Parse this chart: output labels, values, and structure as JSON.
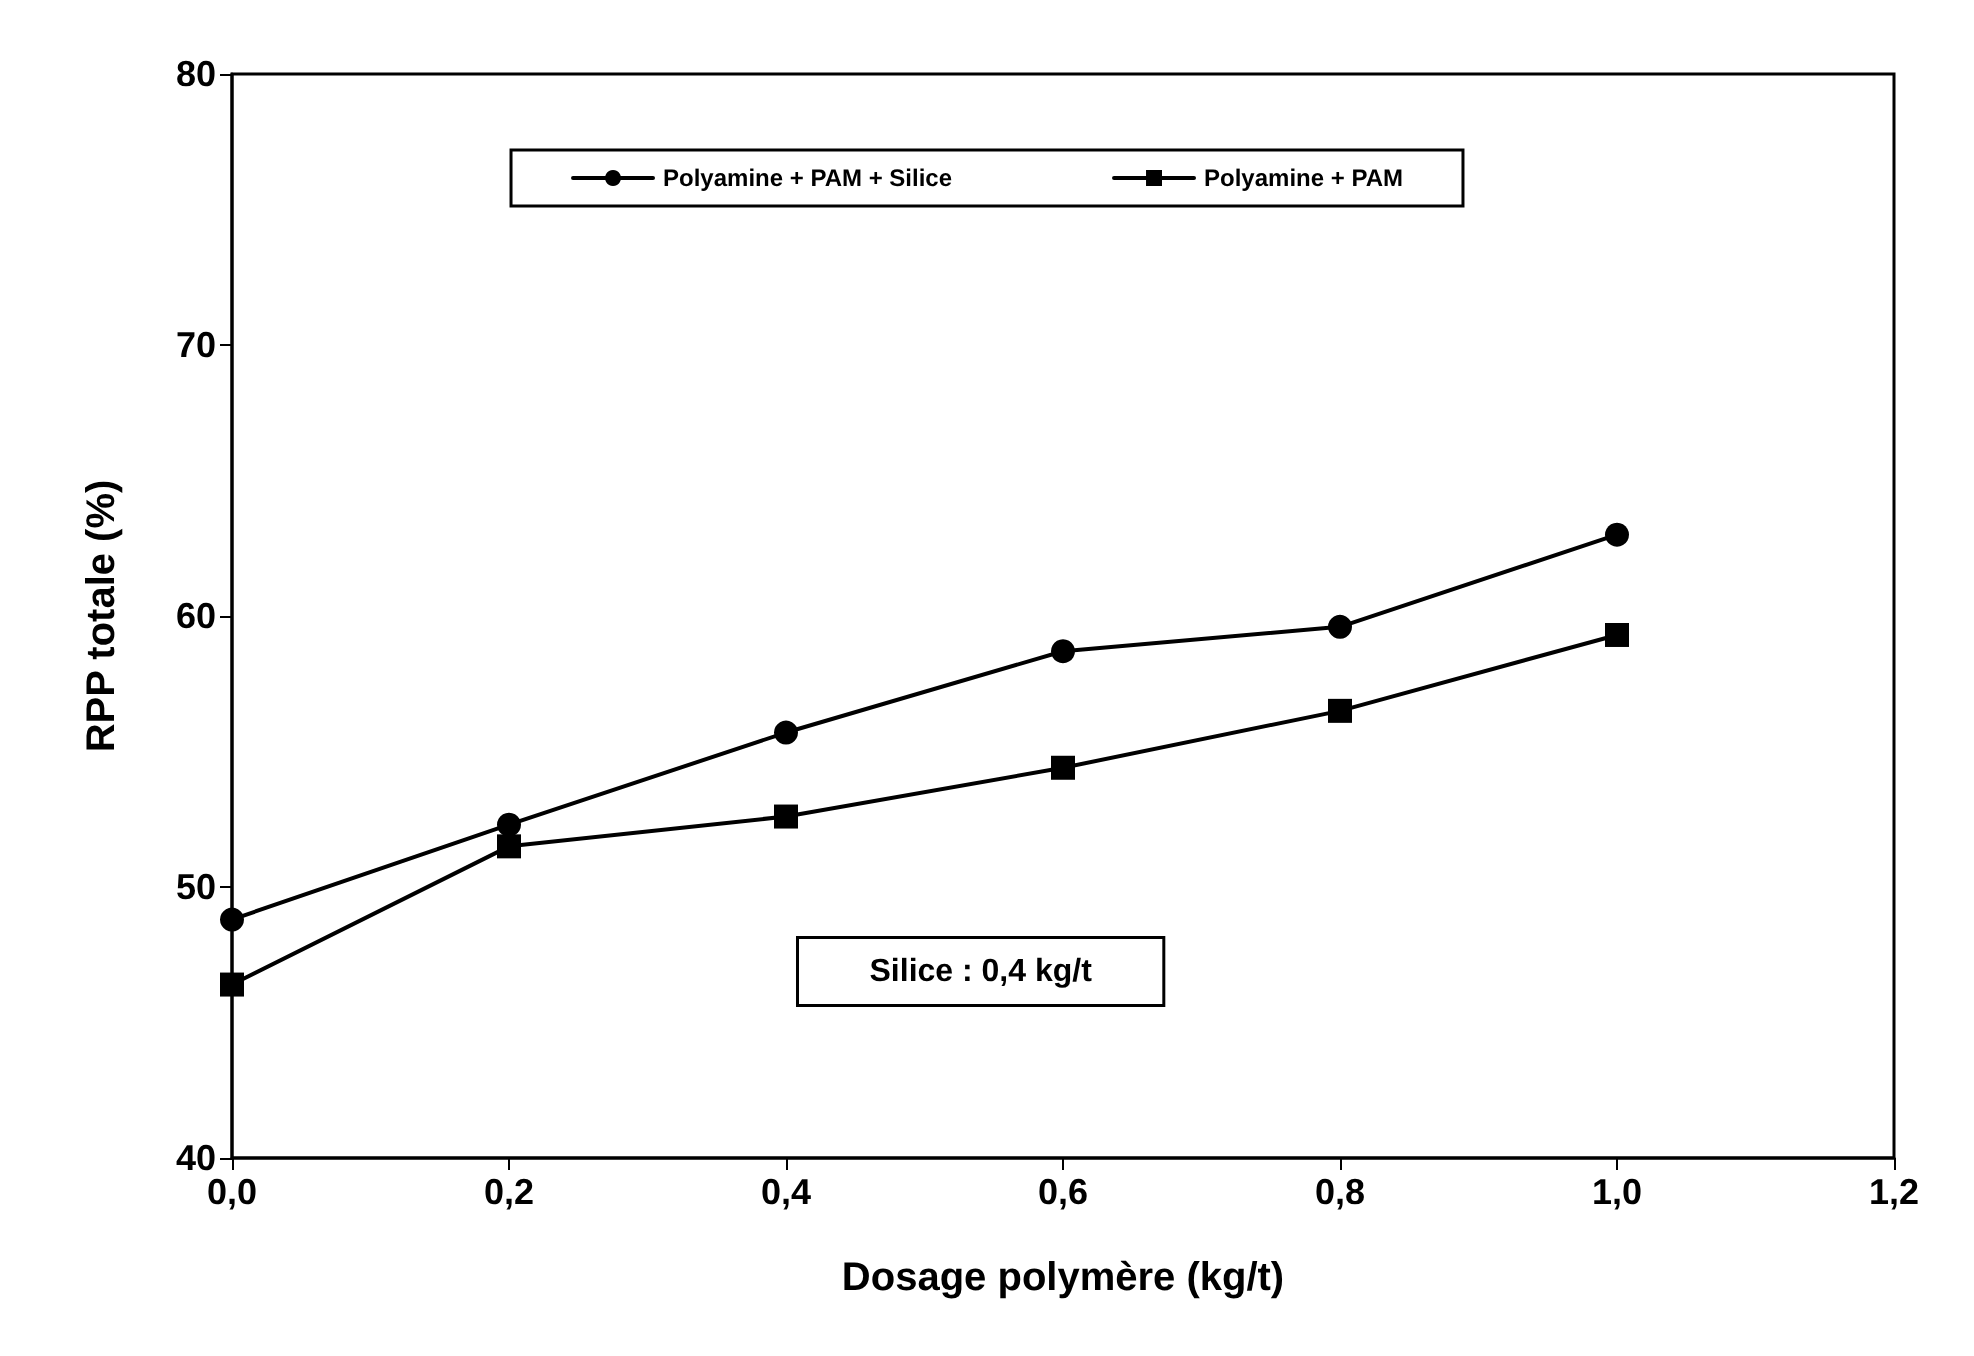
{
  "chart_data": {
    "type": "line",
    "xlabel": "Dosage polymère (kg/t)",
    "ylabel": "RPP totale (%)",
    "x": [
      0,
      0.2,
      0.4,
      0.6,
      0.8,
      1.0
    ],
    "series": [
      {
        "name": "Polyamine + PAM + Silice",
        "color": "#000000",
        "marker": "circle",
        "values": [
          48.8,
          52.3,
          55.7,
          58.7,
          59.6,
          63.0
        ]
      },
      {
        "name": "Polyamine + PAM",
        "color": "#000000",
        "marker": "square",
        "values": [
          46.4,
          51.5,
          52.6,
          54.4,
          56.5,
          59.3
        ]
      }
    ],
    "xlim": [
      0,
      1.2
    ],
    "xticks": [
      {
        "value": 0,
        "label": "0,0"
      },
      {
        "value": 0.2,
        "label": "0,2"
      },
      {
        "value": 0.4,
        "label": "0,4"
      },
      {
        "value": 0.6,
        "label": "0,6"
      },
      {
        "value": 0.8,
        "label": "0,8"
      },
      {
        "value": 1.0,
        "label": "1,0"
      },
      {
        "value": 1.2,
        "label": "1,2"
      }
    ],
    "ylim": [
      40,
      80
    ],
    "yticks": [
      40,
      50,
      60,
      70,
      80
    ],
    "legend": "top",
    "line_style": "solid",
    "annotations": [
      "Silice : 0,4 kg/t"
    ]
  }
}
